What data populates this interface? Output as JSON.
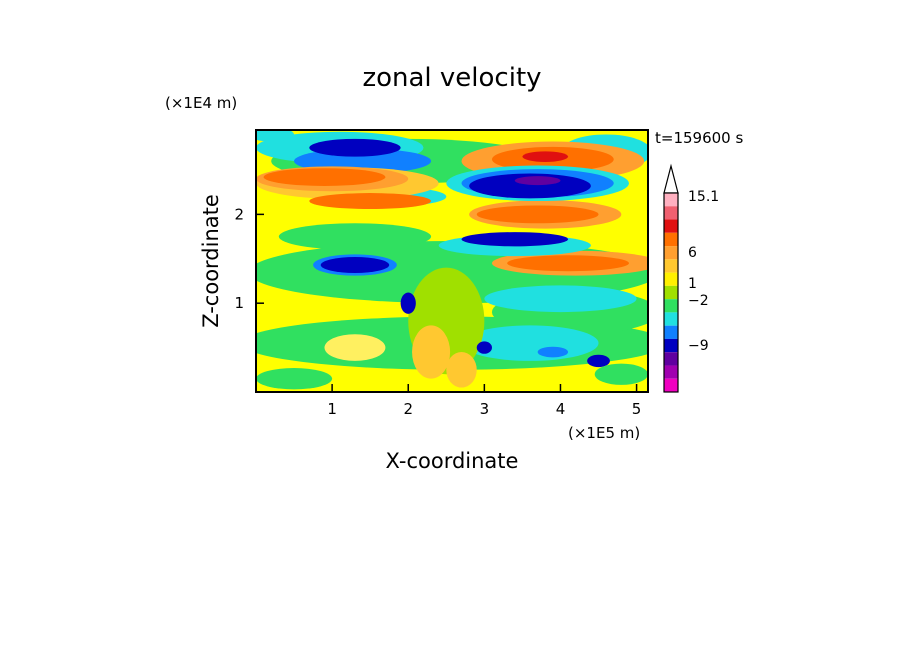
{
  "chart_data": {
    "type": "contour",
    "title": "zonal velocity",
    "xlabel": "X-coordinate",
    "ylabel": "Z-coordinate",
    "x_scale_label": "(×1E5 m)",
    "y_scale_label": "(×1E4 m)",
    "time_label": "t=159600 s",
    "xlim": [
      0,
      5.15
    ],
    "ylim": [
      0,
      2.95
    ],
    "x_ticks": [
      "1",
      "2",
      "3",
      "4",
      "5"
    ],
    "y_ticks": [
      "1",
      "2"
    ],
    "colorbar": {
      "labels": [
        "15.1",
        "6",
        "1",
        "−2",
        "−9"
      ],
      "colors": [
        "#ffb0c0",
        "#f06070",
        "#e01010",
        "#ff7000",
        "#ff9f30",
        "#ffc830",
        "#fff000",
        "#a0e000",
        "#30e060",
        "#20e0e0",
        "#1080ff",
        "#0000c0",
        "#6000a0",
        "#a000b0",
        "#f000c0"
      ]
    },
    "field": {
      "background": "#ffff00",
      "blobs": [
        {
          "x": 2.6,
          "z": 1.35,
          "rx": 2.7,
          "rz": 0.35,
          "color": "#30e060"
        },
        {
          "x": 2.6,
          "z": 0.55,
          "rx": 2.8,
          "rz": 0.3,
          "color": "#30e060"
        },
        {
          "x": 4.2,
          "z": 0.9,
          "rx": 1.1,
          "rz": 0.25,
          "color": "#30e060"
        },
        {
          "x": 2.0,
          "z": 2.6,
          "rx": 1.8,
          "rz": 0.25,
          "color": "#30e060"
        },
        {
          "x": 0.5,
          "z": 0.15,
          "rx": 0.5,
          "rz": 0.12,
          "color": "#30e060"
        },
        {
          "x": 1.3,
          "z": 1.75,
          "rx": 1.0,
          "rz": 0.15,
          "color": "#30e060"
        },
        {
          "x": 4.6,
          "z": 2.7,
          "rx": 0.6,
          "rz": 0.2,
          "color": "#20e0e0"
        },
        {
          "x": 1.1,
          "z": 2.75,
          "rx": 1.1,
          "rz": 0.18,
          "color": "#20e0e0"
        },
        {
          "x": 0.2,
          "z": 2.9,
          "rx": 0.3,
          "rz": 0.08,
          "color": "#20e0e0"
        },
        {
          "x": 3.6,
          "z": 0.55,
          "rx": 0.9,
          "rz": 0.2,
          "color": "#20e0e0"
        },
        {
          "x": 4.0,
          "z": 1.05,
          "rx": 1.0,
          "rz": 0.15,
          "color": "#20e0e0"
        },
        {
          "x": 2.5,
          "z": 0.8,
          "rx": 0.5,
          "rz": 0.6,
          "color": "#a0e000"
        },
        {
          "x": 1.4,
          "z": 2.6,
          "rx": 0.9,
          "rz": 0.14,
          "color": "#1080ff"
        },
        {
          "x": 1.9,
          "z": 2.2,
          "rx": 0.6,
          "rz": 0.1,
          "color": "#20e0e0"
        },
        {
          "x": 1.2,
          "z": 2.35,
          "rx": 1.2,
          "rz": 0.18,
          "color": "#ffc830"
        },
        {
          "x": 1.0,
          "z": 2.4,
          "rx": 1.0,
          "rz": 0.14,
          "color": "#ff9f30"
        },
        {
          "x": 0.9,
          "z": 2.42,
          "rx": 0.8,
          "rz": 0.1,
          "color": "#ff7000"
        },
        {
          "x": 1.5,
          "z": 2.15,
          "rx": 0.8,
          "rz": 0.09,
          "color": "#ff7000"
        },
        {
          "x": 3.9,
          "z": 2.6,
          "rx": 1.2,
          "rz": 0.22,
          "color": "#ff9f30"
        },
        {
          "x": 3.9,
          "z": 2.62,
          "rx": 0.8,
          "rz": 0.14,
          "color": "#ff7000"
        },
        {
          "x": 3.8,
          "z": 2.65,
          "rx": 0.3,
          "rz": 0.06,
          "color": "#e01010"
        },
        {
          "x": 3.8,
          "z": 2.0,
          "rx": 1.0,
          "rz": 0.16,
          "color": "#ff9f30"
        },
        {
          "x": 3.7,
          "z": 2.0,
          "rx": 0.8,
          "rz": 0.1,
          "color": "#ff7000"
        },
        {
          "x": 4.2,
          "z": 1.45,
          "rx": 1.1,
          "rz": 0.14,
          "color": "#ff9f30"
        },
        {
          "x": 4.1,
          "z": 1.45,
          "rx": 0.8,
          "rz": 0.09,
          "color": "#ff7000"
        },
        {
          "x": 3.4,
          "z": 1.65,
          "rx": 1.0,
          "rz": 0.12,
          "color": "#20e0e0"
        },
        {
          "x": 3.7,
          "z": 2.35,
          "rx": 1.2,
          "rz": 0.2,
          "color": "#20e0e0"
        },
        {
          "x": 3.7,
          "z": 2.35,
          "rx": 1.0,
          "rz": 0.16,
          "color": "#1080ff"
        },
        {
          "x": 3.6,
          "z": 2.32,
          "rx": 0.8,
          "rz": 0.14,
          "color": "#0000c0"
        },
        {
          "x": 3.7,
          "z": 2.38,
          "rx": 0.3,
          "rz": 0.05,
          "color": "#6000a0"
        },
        {
          "x": 3.4,
          "z": 1.72,
          "rx": 0.7,
          "rz": 0.08,
          "color": "#0000c0"
        },
        {
          "x": 1.3,
          "z": 2.75,
          "rx": 0.6,
          "rz": 0.1,
          "color": "#0000c0"
        },
        {
          "x": 1.3,
          "z": 1.43,
          "rx": 0.55,
          "rz": 0.12,
          "color": "#1080ff"
        },
        {
          "x": 1.3,
          "z": 1.43,
          "rx": 0.45,
          "rz": 0.09,
          "color": "#0000c0"
        },
        {
          "x": 2.0,
          "z": 1.0,
          "rx": 0.1,
          "rz": 0.12,
          "color": "#0000c0"
        },
        {
          "x": 3.0,
          "z": 0.5,
          "rx": 0.1,
          "rz": 0.07,
          "color": "#0000c0"
        },
        {
          "x": 4.5,
          "z": 0.35,
          "rx": 0.15,
          "rz": 0.07,
          "color": "#0000c0"
        },
        {
          "x": 3.9,
          "z": 0.45,
          "rx": 0.2,
          "rz": 0.06,
          "color": "#1080ff"
        },
        {
          "x": 2.3,
          "z": 0.45,
          "rx": 0.25,
          "rz": 0.3,
          "color": "#ffc830"
        },
        {
          "x": 2.7,
          "z": 0.25,
          "rx": 0.2,
          "rz": 0.2,
          "color": "#ffc830"
        },
        {
          "x": 1.3,
          "z": 0.5,
          "rx": 0.4,
          "rz": 0.15,
          "color": "#fff060"
        },
        {
          "x": 4.8,
          "z": 0.2,
          "rx": 0.35,
          "rz": 0.12,
          "color": "#30e060"
        }
      ]
    }
  }
}
